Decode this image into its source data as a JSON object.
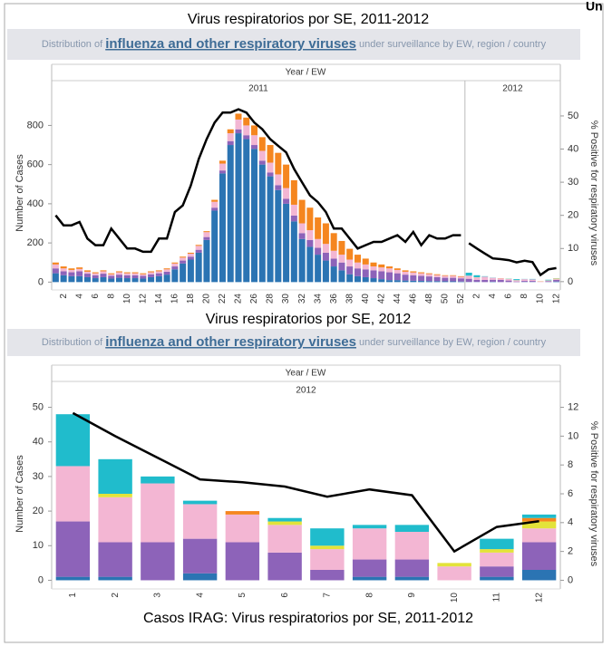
{
  "header": {
    "text": "Un"
  },
  "chart_data": [
    {
      "type": "bar",
      "title": "Virus respiratorios por SE, 2011-2012",
      "subtitle_parts": [
        "Distribution of ",
        "influenza and other respiratory viruses",
        " under surveillance by EW, region / country"
      ],
      "x_label": "Year / EW",
      "y_label": "Number of Cases",
      "y2_label": "% Positive for respiratory viruses",
      "ylim": [
        -40,
        950
      ],
      "yticks": [
        0,
        200,
        400,
        600,
        800
      ],
      "y2lim": [
        -2.5,
        56
      ],
      "y2ticks": [
        0,
        10,
        20,
        30,
        40,
        50
      ],
      "panels": [
        {
          "label": "2011",
          "categories": [
            null,
            "2",
            null,
            "4",
            null,
            "6",
            null,
            "8",
            null,
            "10",
            null,
            "12",
            null,
            "14",
            null,
            "16",
            null,
            "18",
            null,
            "20",
            null,
            "22",
            null,
            "24",
            null,
            "26",
            null,
            "28",
            null,
            "30",
            null,
            "32",
            null,
            "34",
            null,
            "36",
            null,
            "38",
            null,
            "40",
            null,
            "42",
            null,
            "44",
            null,
            "46",
            null,
            "48",
            null,
            "50",
            null,
            "52"
          ],
          "series": [
            {
              "color": "#2b74b3",
              "values": [
                45,
                35,
                30,
                30,
                25,
                20,
                25,
                18,
                22,
                20,
                20,
                18,
                25,
                30,
                38,
                65,
                95,
                115,
                150,
                215,
                365,
                555,
                700,
                760,
                730,
                680,
                600,
                540,
                470,
                400,
                310,
                220,
                180,
                140,
                110,
                80,
                60,
                40,
                30,
                25,
                20,
                15,
                10,
                10,
                8,
                7,
                6,
                5,
                5,
                4,
                4,
                3
              ]
            },
            {
              "color": "#8d63b9",
              "values": [
                25,
                20,
                20,
                25,
                18,
                15,
                18,
                14,
                16,
                15,
                15,
                14,
                15,
                15,
                15,
                15,
                15,
                15,
                15,
                15,
                15,
                15,
                20,
                20,
                20,
                20,
                20,
                20,
                25,
                25,
                30,
                30,
                35,
                35,
                40,
                40,
                40,
                40,
                40,
                40,
                40,
                40,
                40,
                35,
                30,
                28,
                26,
                24,
                20,
                18,
                18,
                16
              ]
            },
            {
              "color": "#f3b6d3",
              "values": [
                20,
                15,
                12,
                12,
                10,
                10,
                12,
                8,
                12,
                10,
                10,
                8,
                10,
                10,
                12,
                15,
                15,
                15,
                20,
                25,
                30,
                35,
                40,
                50,
                50,
                50,
                50,
                50,
                55,
                55,
                55,
                50,
                50,
                45,
                45,
                40,
                40,
                35,
                30,
                25,
                20,
                20,
                20,
                17,
                15,
                14,
                13,
                12,
                11,
                10,
                10,
                8
              ]
            },
            {
              "color": "#f5861f",
              "values": [
                10,
                10,
                8,
                8,
                7,
                5,
                5,
                5,
                5,
                5,
                5,
                5,
                5,
                5,
                5,
                5,
                5,
                5,
                5,
                5,
                10,
                15,
                20,
                30,
                40,
                50,
                70,
                90,
                110,
                120,
                125,
                120,
                115,
                110,
                105,
                90,
                70,
                55,
                40,
                30,
                20,
                15,
                10,
                8,
                7,
                6,
                5,
                4,
                4,
                3,
                3,
                3
              ]
            },
            {
              "type": "line",
              "axis": "y2",
              "color": "#000000",
              "values": [
                20,
                17,
                17,
                18,
                13,
                11,
                11,
                16,
                13,
                10,
                10,
                9,
                9,
                13,
                13,
                21,
                23,
                29,
                37,
                43,
                48,
                51,
                51,
                52,
                51,
                48,
                46,
                43,
                41,
                39,
                34,
                30,
                26,
                24,
                21,
                16,
                16,
                13,
                10,
                11,
                12,
                12,
                13,
                14,
                12,
                15,
                11,
                14,
                13,
                13,
                14,
                14
              ]
            }
          ]
        },
        {
          "label": "2012",
          "categories": [
            null,
            "2",
            null,
            "4",
            null,
            "6",
            null,
            "8",
            null,
            "10",
            null,
            "12"
          ],
          "series": [
            {
              "color": "#2b74b3",
              "values": [
                1,
                1,
                0,
                2,
                0,
                0,
                0,
                1,
                1,
                0,
                1,
                3
              ]
            },
            {
              "color": "#8d63b9",
              "values": [
                16,
                10,
                11,
                10,
                11,
                8,
                3,
                5,
                5,
                0,
                3,
                8
              ]
            },
            {
              "color": "#f3b6d3",
              "values": [
                16,
                13,
                17,
                10,
                8,
                8,
                6,
                9,
                8,
                4,
                4,
                4
              ]
            },
            {
              "color": "#e3e33a",
              "values": [
                0,
                1,
                0,
                0,
                0,
                1,
                1,
                0,
                0,
                1,
                1,
                2
              ]
            },
            {
              "color": "#f5861f",
              "values": [
                0,
                0,
                0,
                0,
                1,
                0,
                0,
                0,
                0,
                0,
                0,
                1
              ]
            },
            {
              "color": "#20bccc",
              "values": [
                15,
                10,
                2,
                1,
                0,
                1,
                5,
                1,
                2,
                0,
                3,
                1
              ]
            },
            {
              "type": "line",
              "axis": "y2",
              "color": "#000000",
              "values": [
                11.6,
                10,
                8.5,
                7,
                6.8,
                6.5,
                5.8,
                6.3,
                5.9,
                2,
                3.7,
                4.1
              ]
            }
          ]
        }
      ]
    },
    {
      "type": "bar",
      "title": "Virus respiratorios por SE, 2012",
      "subtitle_parts": [
        "Distribution of ",
        "influenza and other respiratory viruses",
        " under surveillance by EW, region / country"
      ],
      "x_label": "Year / EW",
      "y_label": "Number of Cases",
      "y2_label": "% Positive for respiratory viruses",
      "caption": "Casos IRAG: Virus respiratorios por SE, 2011-2012",
      "ylim": [
        -2.5,
        52.5
      ],
      "yticks": [
        0,
        10,
        20,
        30,
        40,
        50
      ],
      "y2lim": [
        -0.6,
        12.6
      ],
      "y2ticks": [
        0,
        2,
        4,
        6,
        8,
        10,
        12
      ],
      "panels": [
        {
          "label": "2012",
          "categories": [
            "1",
            "2",
            "3",
            "4",
            "5",
            "6",
            "7",
            "8",
            "9",
            "10",
            "11",
            "12"
          ],
          "series": [
            {
              "color": "#2b74b3",
              "values": [
                1,
                1,
                0,
                2,
                0,
                0,
                0,
                1,
                1,
                0,
                1,
                3
              ]
            },
            {
              "color": "#8d63b9",
              "values": [
                16,
                10,
                11,
                10,
                11,
                8,
                3,
                5,
                5,
                0,
                3,
                8
              ]
            },
            {
              "color": "#f3b6d3",
              "values": [
                16,
                13,
                17,
                10,
                8,
                8,
                6,
                9,
                8,
                4,
                4,
                4
              ]
            },
            {
              "color": "#e3e33a",
              "values": [
                0,
                1,
                0,
                0,
                0,
                1,
                1,
                0,
                0,
                1,
                1,
                2
              ]
            },
            {
              "color": "#f5861f",
              "values": [
                0,
                0,
                0,
                0,
                1,
                0,
                0,
                0,
                0,
                0,
                0,
                1
              ]
            },
            {
              "color": "#20bccc",
              "values": [
                15,
                10,
                2,
                1,
                0,
                1,
                5,
                1,
                2,
                0,
                3,
                1
              ]
            },
            {
              "type": "line",
              "axis": "y2",
              "color": "#000000",
              "values": [
                11.6,
                10,
                8.5,
                7,
                6.8,
                6.5,
                5.8,
                6.3,
                5.9,
                2,
                3.7,
                4.1
              ]
            }
          ]
        }
      ]
    }
  ]
}
